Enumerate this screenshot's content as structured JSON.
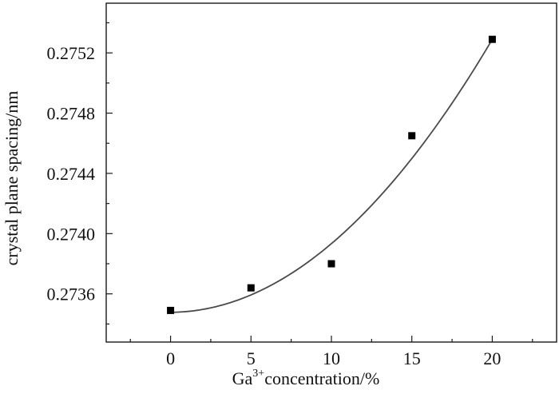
{
  "chart_data": {
    "type": "scatter",
    "title": "",
    "xlabel": {
      "base": "Ga",
      "superscript": "3+",
      "rest": "concentration/%"
    },
    "ylabel": "crystal plane spacing/nm",
    "xlim": [
      -4,
      24
    ],
    "ylim": [
      0.27328,
      0.27553
    ],
    "x_ticks": [
      0,
      5,
      10,
      15,
      20
    ],
    "x_tick_labels": [
      "0",
      "5",
      "10",
      "15",
      "20"
    ],
    "y_ticks": [
      0.2736,
      0.274,
      0.2744,
      0.2748,
      0.2752
    ],
    "y_tick_labels": [
      "0.2736",
      "0.2740",
      "0.2744",
      "0.2748",
      "0.2752"
    ],
    "grid": false,
    "legend": "none",
    "series": [
      {
        "type": "scatter",
        "marker": "square",
        "x": [
          0,
          5,
          10,
          15,
          20
        ],
        "y": [
          0.27349,
          0.27364,
          0.2738,
          0.27465,
          0.27529
        ]
      },
      {
        "type": "line",
        "fit": "quadratic",
        "x_range": [
          0,
          20
        ],
        "coefficients": {
          "a": 0.2734775,
          "b": 6e-07,
          "c": 4.5e-06
        }
      }
    ]
  }
}
